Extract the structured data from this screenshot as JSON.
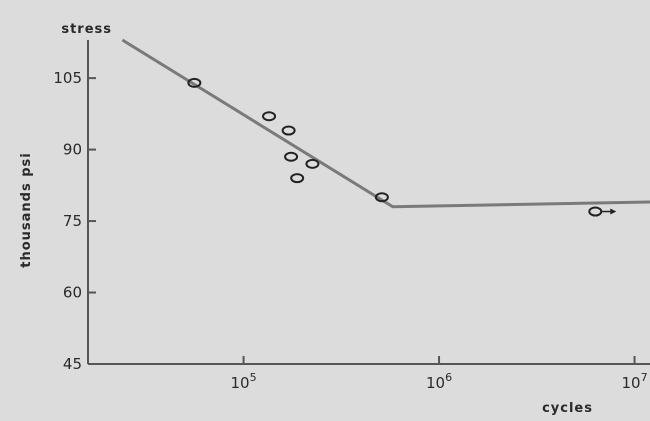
{
  "chart_data": {
    "type": "scatter",
    "title": "",
    "xlabel": "cycles",
    "ylabel": "thousands psi",
    "ylabel_top": "stress",
    "x_scale": "log",
    "xlim": [
      16000,
      12000000
    ],
    "ylim": [
      45,
      113
    ],
    "x_ticks": [
      {
        "base": "10",
        "exp": "5",
        "value": 100000
      },
      {
        "base": "10",
        "exp": "6",
        "value": 1000000
      },
      {
        "base": "10",
        "exp": "7",
        "value": 10000000
      }
    ],
    "y_ticks": [
      {
        "label": "105",
        "value": 105
      },
      {
        "label": "90",
        "value": 90
      },
      {
        "label": "75",
        "value": 75
      },
      {
        "label": "60",
        "value": 60
      },
      {
        "label": "45",
        "value": 45
      }
    ],
    "grid": false,
    "points": [
      {
        "x": 56000,
        "y": 104
      },
      {
        "x": 135000,
        "y": 97
      },
      {
        "x": 170000,
        "y": 94
      },
      {
        "x": 175000,
        "y": 88.5
      },
      {
        "x": 188000,
        "y": 84
      },
      {
        "x": 225000,
        "y": 87
      },
      {
        "x": 510000,
        "y": 80
      },
      {
        "x": 6300000,
        "y": 77,
        "runout": true
      }
    ],
    "fit_line": [
      {
        "x": 24000,
        "y": 113
      },
      {
        "x": 580000,
        "y": 78
      },
      {
        "x": 12000000,
        "y": 79
      }
    ]
  }
}
